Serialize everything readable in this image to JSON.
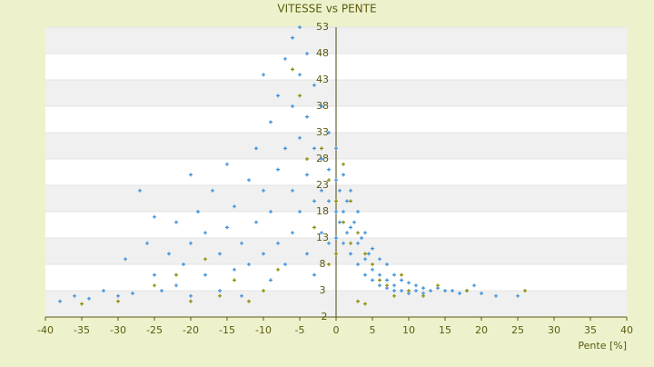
{
  "chart_data": {
    "type": "scatter",
    "title": "VITESSE vs PENTE",
    "x_label": "Pente [%]",
    "xlim": [
      -40,
      40
    ],
    "xticks": [
      -40,
      -35,
      -30,
      -25,
      -20,
      -15,
      -10,
      -5,
      0,
      5,
      10,
      15,
      20,
      25,
      30,
      35,
      40
    ],
    "ylim": [
      -2,
      53
    ],
    "yticks": [
      -2,
      3,
      8,
      13,
      18,
      23,
      28,
      33,
      38,
      43,
      48,
      53
    ],
    "series": [
      {
        "color": "#3a8fd9",
        "x": [
          -38,
          -36,
          -34,
          -32,
          -30,
          -29,
          -28,
          -27,
          -26,
          -25,
          -25,
          -24,
          -23,
          -22,
          -22,
          -21,
          -20,
          -20,
          -20,
          -19,
          -18,
          -18,
          -17,
          -16,
          -16,
          -15,
          -15,
          -14,
          -14,
          -13,
          -13,
          -12,
          -12,
          -11,
          -11,
          -10,
          -10,
          -10,
          -9,
          -9,
          -9,
          -8,
          -8,
          -8,
          -7,
          -7,
          -7,
          -6,
          -6,
          -6,
          -6,
          -5,
          -5,
          -5,
          -5,
          -4,
          -4,
          -4,
          -4,
          -3,
          -3,
          -3,
          -3,
          -2,
          -2,
          -2,
          -2,
          -1,
          -1,
          -1,
          -1,
          0,
          0,
          0,
          0,
          0.5,
          0.5,
          1,
          1,
          1,
          1.5,
          1.5,
          2,
          2,
          2,
          2.5,
          3,
          3,
          3,
          3.5,
          4,
          4,
          4,
          4.5,
          5,
          5,
          5,
          6,
          6,
          6,
          7,
          7,
          7,
          8,
          8,
          8,
          9,
          9,
          10,
          10,
          11,
          11,
          12,
          12,
          13,
          14,
          15,
          16,
          17,
          18,
          19,
          20,
          22,
          25
        ],
        "values": [
          1,
          2,
          1.5,
          3,
          2,
          9,
          2.5,
          22,
          12,
          6,
          17,
          3,
          10,
          16,
          4,
          8,
          25,
          12,
          2,
          18,
          6,
          14,
          22,
          10,
          3,
          27,
          15,
          7,
          19,
          12,
          2,
          24,
          8,
          16,
          30,
          44,
          10,
          22,
          35,
          5,
          18,
          40,
          26,
          12,
          47,
          30,
          8,
          51,
          38,
          22,
          14,
          53,
          44,
          32,
          18,
          48,
          36,
          25,
          10,
          42,
          30,
          20,
          6,
          38,
          28,
          22,
          14,
          33,
          26,
          20,
          12,
          30,
          24,
          18,
          13,
          22,
          16,
          25,
          18,
          12,
          20,
          14,
          22,
          15,
          10,
          16,
          18,
          12,
          8,
          13,
          14,
          9,
          6,
          10,
          11,
          7,
          5,
          9,
          6,
          4,
          8,
          5,
          3.5,
          6,
          4,
          3,
          5,
          3,
          4.5,
          2.5,
          4,
          3,
          3.5,
          2.5,
          3,
          3.5,
          3,
          3,
          2.5,
          3,
          4,
          2.5,
          2,
          2
        ]
      },
      {
        "color": "#8a8a00",
        "x": [
          -35,
          -30,
          -25,
          -22,
          -20,
          -18,
          -16,
          -14,
          -12,
          -10,
          -8,
          -6,
          -5,
          -4,
          -3,
          -2,
          -1,
          -1,
          0,
          0,
          1,
          1,
          2,
          2,
          3,
          3,
          4,
          4,
          5,
          6,
          7,
          8,
          9,
          10,
          12,
          14,
          18,
          26
        ],
        "values": [
          0.5,
          1,
          4,
          6,
          1,
          9,
          2,
          5,
          1,
          3,
          7,
          45,
          40,
          28,
          15,
          30,
          24,
          8,
          20,
          10,
          27,
          16,
          20,
          12,
          14,
          1,
          10,
          0.5,
          8,
          5,
          4,
          2,
          6,
          3,
          2,
          4,
          3,
          3
        ]
      }
    ]
  }
}
